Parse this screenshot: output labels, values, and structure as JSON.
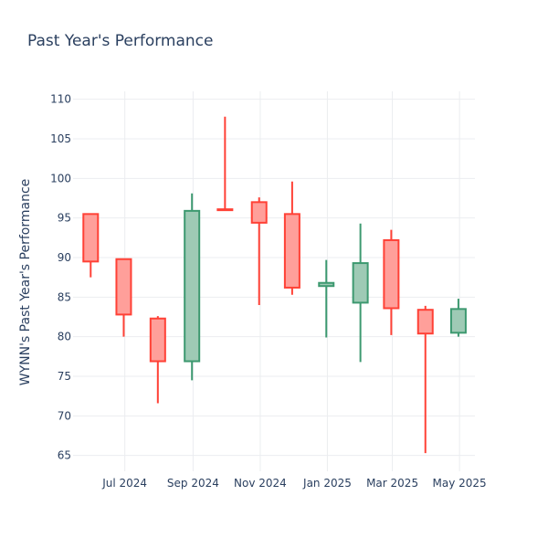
{
  "chart_data": {
    "type": "candlestick",
    "title": "Past Year's Performance",
    "ylabel": "WYNN's Past Year's Performance",
    "xlabel": "",
    "ylim": [
      63,
      111
    ],
    "grid": true,
    "colors": {
      "up": "#3d9970",
      "up_fill": "#9ecab5",
      "down": "#ff4136",
      "down_fill": "#ff9f9a",
      "grid": "#ebedf0",
      "text": "#2a3f5f"
    },
    "y_ticks": [
      65,
      70,
      75,
      80,
      85,
      90,
      95,
      100,
      105,
      110
    ],
    "x_ticks": [
      {
        "date": "2024-07-01",
        "label": "Jul 2024"
      },
      {
        "date": "2024-09-01",
        "label": "Sep 2024"
      },
      {
        "date": "2024-11-01",
        "label": "Nov 2024"
      },
      {
        "date": "2025-01-01",
        "label": "Jan 2025"
      },
      {
        "date": "2025-03-01",
        "label": "Mar 2025"
      },
      {
        "date": "2025-05-01",
        "label": "May 2025"
      }
    ],
    "x_range": [
      "2024-05-15",
      "2025-05-15"
    ],
    "candles": [
      {
        "date": "2024-05-31",
        "open": 95.5,
        "high": 95.5,
        "low": 87.5,
        "close": 89.5
      },
      {
        "date": "2024-06-30",
        "open": 89.8,
        "high": 89.8,
        "low": 80.0,
        "close": 82.8
      },
      {
        "date": "2024-07-31",
        "open": 82.3,
        "high": 82.6,
        "low": 71.6,
        "close": 76.9
      },
      {
        "date": "2024-08-31",
        "open": 76.9,
        "high": 98.1,
        "low": 74.5,
        "close": 95.9
      },
      {
        "date": "2024-09-30",
        "open": 96.1,
        "high": 107.8,
        "low": 96.0,
        "close": 96.0
      },
      {
        "date": "2024-10-31",
        "open": 97.0,
        "high": 97.6,
        "low": 84.0,
        "close": 94.4
      },
      {
        "date": "2024-11-30",
        "open": 95.5,
        "high": 99.6,
        "low": 85.3,
        "close": 86.2
      },
      {
        "date": "2024-12-31",
        "open": 86.4,
        "high": 89.7,
        "low": 79.9,
        "close": 86.8
      },
      {
        "date": "2025-01-31",
        "open": 84.3,
        "high": 94.3,
        "low": 76.8,
        "close": 89.3
      },
      {
        "date": "2025-02-28",
        "open": 92.2,
        "high": 93.5,
        "low": 80.2,
        "close": 83.6
      },
      {
        "date": "2025-03-31",
        "open": 83.4,
        "high": 83.9,
        "low": 65.3,
        "close": 80.4
      },
      {
        "date": "2025-04-30",
        "open": 80.5,
        "high": 84.8,
        "low": 80.0,
        "close": 83.5
      }
    ]
  }
}
